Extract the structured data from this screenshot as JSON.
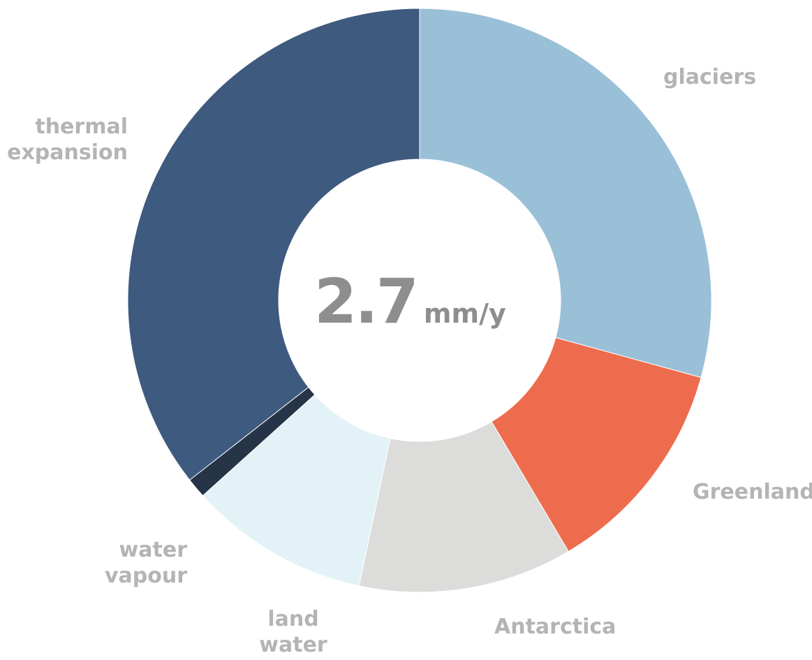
{
  "chart_data": {
    "type": "pie",
    "donut": true,
    "center_label": {
      "value": "2.7",
      "unit": "mm/y"
    },
    "slices": [
      {
        "label": "glaciers",
        "value": 0.79,
        "color": "#9ac0d8"
      },
      {
        "label": "Greenland",
        "value": 0.33,
        "color": "#ee6c4e"
      },
      {
        "label": "Antarctica",
        "value": 0.32,
        "color": "#dcdcdb"
      },
      {
        "label": "land\nwater",
        "value": 0.27,
        "color": "#e3f2f7"
      },
      {
        "label": "water\nvapour",
        "value": 0.03,
        "color": "#263447"
      },
      {
        "label": "thermal\nexpansion",
        "value": 0.96,
        "color": "#3e5a7e"
      }
    ]
  }
}
